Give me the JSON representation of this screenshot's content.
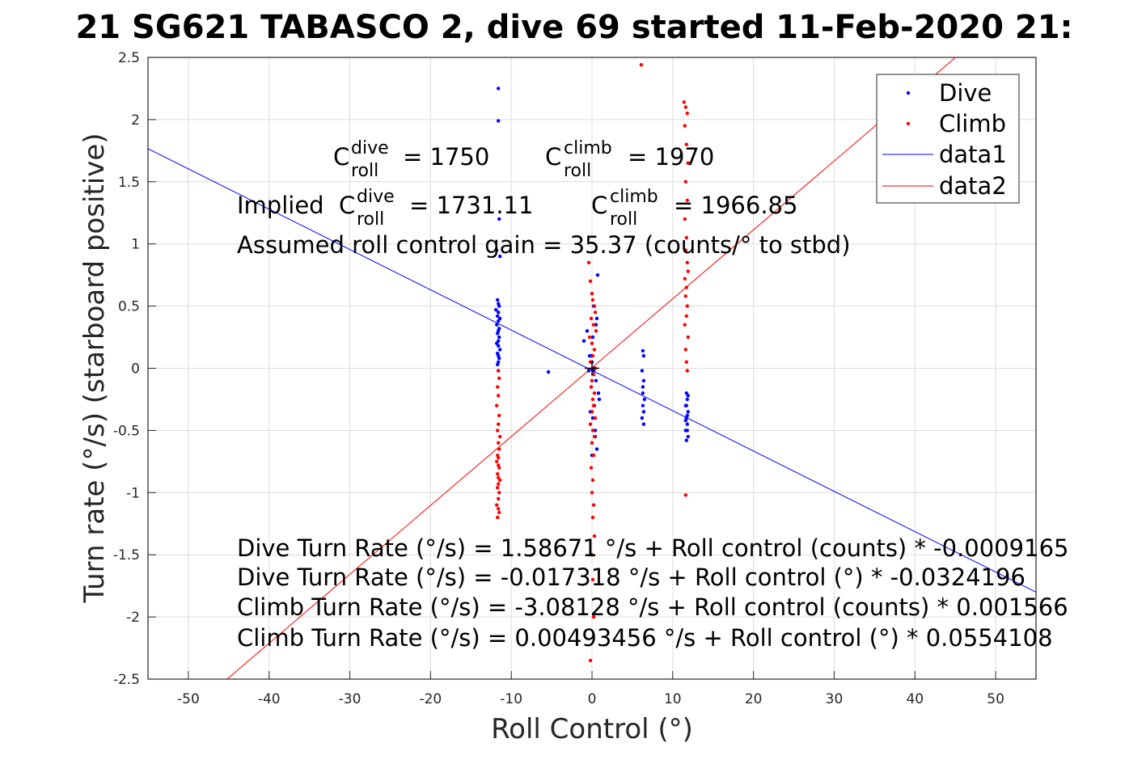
{
  "chart_data": {
    "type": "scatter",
    "title": "21 SG621 TABASCO 2, dive 69 started 11-Feb-2020 21:",
    "xlabel": "Roll Control (°)",
    "ylabel": "Turn rate (°/s) (starboard positive)",
    "xlim": [
      -55,
      55
    ],
    "ylim": [
      -2.5,
      2.5
    ],
    "xticks": [
      -50,
      -40,
      -30,
      -20,
      -10,
      0,
      10,
      20,
      30,
      40,
      50
    ],
    "yticks": [
      -2.5,
      -2,
      -1.5,
      -1,
      -0.5,
      0,
      0.5,
      1,
      1.5,
      2,
      2.5
    ],
    "xtick_labels": [
      "-50",
      "-40",
      "-30",
      "-20",
      "-10",
      "0",
      "10",
      "20",
      "30",
      "40",
      "50"
    ],
    "ytick_labels": [
      "-2.5",
      "-2",
      "-1.5",
      "-1",
      "-0.5",
      "0",
      "0.5",
      "1",
      "1.5",
      "2",
      "2.5"
    ],
    "grid": true,
    "legend_placement": "top-right",
    "series": [
      {
        "name": "Dive",
        "kind": "points",
        "color": "#0000ff",
        "x": [
          -11.6,
          -11.6,
          -11.5,
          -11.8,
          -11.4,
          -11.7,
          -11.6,
          -11.5,
          -11.9,
          -11.6,
          -11.7,
          -11.4,
          -11.6,
          -11.8,
          -11.5,
          -11.6,
          -11.7,
          -11.5,
          -11.6,
          -11.8,
          -11.6,
          -11.4,
          -11.7,
          -11.6,
          -11.5,
          -11.6,
          -11.7,
          -11.6,
          -5.4,
          -1.0,
          -0.6,
          -0.3,
          0.0,
          0.2,
          0.5,
          0.8,
          0.3,
          -0.2,
          0.1,
          0.4,
          0.6,
          0.0,
          -0.4,
          0.7,
          0.2,
          0.5,
          0.1,
          -0.1,
          0.3,
          0.9,
          0.4,
          0.6,
          6.3,
          6.4,
          6.2,
          6.4,
          6.3,
          6.5,
          6.3,
          6.4,
          6.2,
          6.4,
          6.3,
          11.7,
          11.8,
          11.6,
          11.9,
          11.7,
          11.8,
          11.6,
          11.9,
          11.7,
          11.8,
          11.6,
          11.7,
          11.8,
          11.9
        ],
        "y": [
          2.25,
          1.99,
          1.2,
          0.95,
          0.9,
          0.55,
          0.52,
          0.5,
          0.47,
          0.45,
          0.42,
          0.4,
          0.38,
          0.35,
          0.32,
          0.3,
          0.28,
          0.25,
          0.22,
          0.2,
          0.18,
          0.15,
          0.12,
          0.1,
          0.08,
          0.05,
          0.03,
          -0.02,
          -0.03,
          0.22,
          0.3,
          0.1,
          0.05,
          -0.02,
          -0.1,
          -0.2,
          -0.3,
          -0.35,
          -0.4,
          -0.5,
          -0.65,
          -0.7,
          -0.02,
          0.75,
          0.5,
          0.35,
          0.25,
          0.1,
          0.0,
          -0.25,
          -0.55,
          0.4,
          0.14,
          0.1,
          -0.02,
          -0.1,
          -0.2,
          -0.25,
          -0.3,
          -0.35,
          -0.4,
          -0.45,
          -0.15,
          -0.2,
          -0.25,
          -0.3,
          -0.35,
          -0.4,
          -0.45,
          -0.5,
          -0.55,
          -0.58,
          -0.38,
          -0.42,
          -0.3,
          -0.5,
          -0.22
        ]
      },
      {
        "name": "Climb",
        "kind": "points",
        "color": "#ff0000",
        "x": [
          -11.6,
          -11.5,
          -11.7,
          -11.6,
          -11.8,
          -11.5,
          -11.6,
          -11.7,
          -11.4,
          -11.6,
          -11.5,
          -11.7,
          -11.6,
          -11.8,
          -11.6,
          -11.5,
          -11.7,
          -11.6,
          -11.4,
          -11.6,
          -11.7,
          -11.5,
          -11.6,
          -11.8,
          -11.6,
          -11.5,
          -11.7,
          -0.4,
          -0.2,
          0.0,
          0.1,
          0.3,
          0.4,
          -0.1,
          0.2,
          0.5,
          -0.3,
          0.0,
          0.3,
          0.1,
          -0.2,
          0.4,
          0.2,
          0.0,
          -0.1,
          0.3,
          0.1,
          0.2,
          0.0,
          0.4,
          -0.2,
          0.1,
          0.3,
          0.0,
          0.2,
          -0.1,
          0.1,
          0.0,
          0.2,
          0.1,
          0.3,
          0.0,
          0.1,
          0.2,
          -0.2,
          6.1,
          11.4,
          11.6,
          11.8,
          11.5,
          11.7,
          11.9,
          11.6,
          11.8,
          11.5,
          11.7,
          11.6,
          11.8,
          11.9,
          11.5,
          11.7,
          11.6,
          11.8,
          11.7,
          11.5,
          11.9,
          11.6,
          11.7,
          11.8,
          11.6
        ],
        "y": [
          -0.02,
          -0.08,
          -0.15,
          -0.22,
          -0.3,
          -0.38,
          -0.45,
          -0.5,
          -0.55,
          -0.6,
          -0.65,
          -0.7,
          -0.72,
          -0.75,
          -0.78,
          -0.8,
          -0.85,
          -0.88,
          -0.9,
          -0.93,
          -0.96,
          -1.0,
          -1.05,
          -1.1,
          -1.13,
          -1.16,
          -1.2,
          0.85,
          0.7,
          0.6,
          0.55,
          0.5,
          0.45,
          0.4,
          0.35,
          0.3,
          0.25,
          0.2,
          0.15,
          0.1,
          0.05,
          0.0,
          -0.05,
          -0.1,
          -0.15,
          -0.2,
          -0.25,
          -0.3,
          -0.35,
          -0.4,
          -0.45,
          -0.5,
          -0.55,
          -0.6,
          -0.7,
          -0.8,
          -0.9,
          -1.0,
          -1.1,
          -1.2,
          -1.35,
          -1.5,
          -1.7,
          -2.0,
          -2.35,
          2.44,
          2.14,
          2.1,
          2.05,
          1.95,
          1.8,
          1.65,
          1.5,
          1.35,
          1.2,
          1.05,
          0.95,
          0.85,
          0.78,
          0.72,
          0.65,
          0.58,
          0.5,
          0.42,
          0.35,
          0.25,
          0.15,
          0.05,
          -0.02,
          -1.02
        ]
      },
      {
        "name": "data1",
        "kind": "line",
        "color": "#0000ff",
        "x": [
          -55,
          55
        ],
        "y": [
          1.7657,
          -1.8004
        ]
      },
      {
        "name": "data2",
        "kind": "line",
        "color": "#ff0000",
        "x": [
          -55,
          55
        ],
        "y": [
          -3.0426,
          3.0525
        ]
      }
    ],
    "annotations": {
      "c_roll_dive": {
        "base": "C",
        "sup": "dive",
        "sub": "roll",
        "value": "= 1750"
      },
      "c_roll_climb": {
        "base": "C",
        "sup": "climb",
        "sub": "roll",
        "value": "= 1970"
      },
      "implied_prefix": "Implied ",
      "implied_dive": {
        "base": "C",
        "sup": "dive",
        "sub": "roll",
        "value": "= 1731.11"
      },
      "implied_climb": {
        "base": "C",
        "sup": "climb",
        "sub": "roll",
        "value": "= 1966.85"
      },
      "gain": "Assumed roll control gain = 35.37 (counts/° to stbd)",
      "fit_lines": [
        "Dive Turn Rate (°/s) = 1.58671 °/s + Roll control (counts) * -0.0009165",
        "Dive Turn Rate (°/s) = -0.017318 °/s + Roll control (°) * -0.0324196",
        "Climb Turn Rate (°/s) = -3.08128 °/s + Roll control (counts) * 0.001566",
        "Climb Turn Rate (°/s) = 0.00493456 °/s + Roll control (°) * 0.0554108"
      ]
    }
  }
}
